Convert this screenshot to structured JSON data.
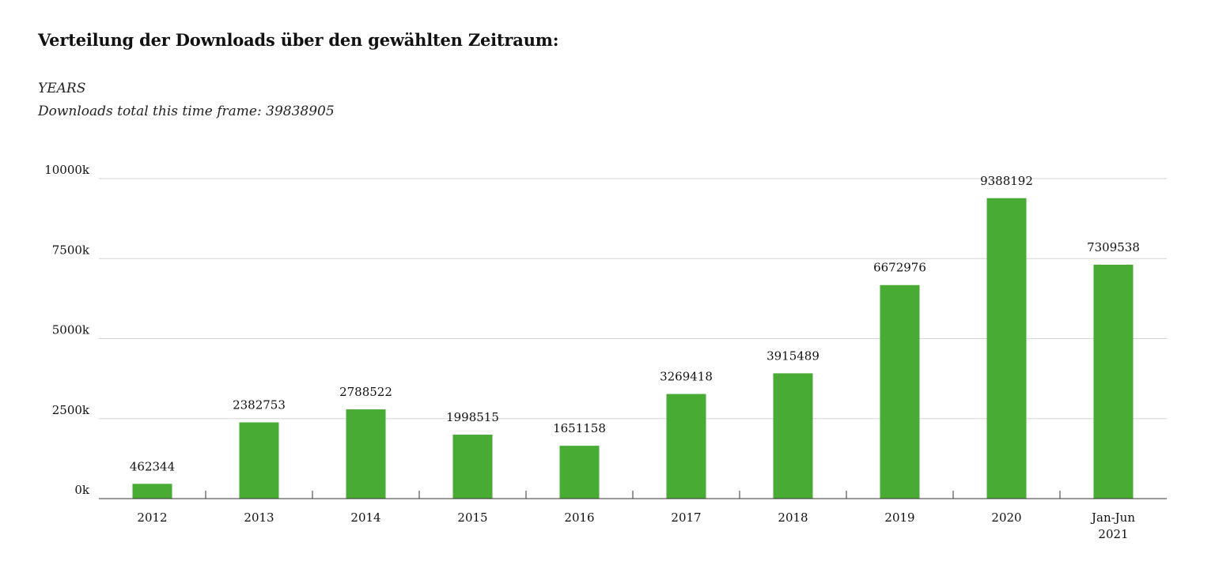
{
  "heading": "Verteilung der Downloads über den gewählten Zeitraum:",
  "frame_label": "YEARS",
  "total_prefix": "Downloads total this time frame: ",
  "total_value": "39838905",
  "colors": {
    "bar": "#47ab34",
    "grid": "#d6d6d6",
    "axis": "#333333",
    "text": "#111111"
  },
  "chart_data": {
    "type": "bar",
    "title": "Verteilung der Downloads über den gewählten Zeitraum:",
    "xlabel": "",
    "ylabel": "",
    "categories": [
      "2012",
      "2013",
      "2014",
      "2015",
      "2016",
      "2017",
      "2018",
      "2019",
      "2020",
      "Jan-Jun 2021"
    ],
    "category_lines": [
      [
        "2012"
      ],
      [
        "2013"
      ],
      [
        "2014"
      ],
      [
        "2015"
      ],
      [
        "2016"
      ],
      [
        "2017"
      ],
      [
        "2018"
      ],
      [
        "2019"
      ],
      [
        "2020"
      ],
      [
        "Jan-Jun",
        "2021"
      ]
    ],
    "values": [
      462344,
      2382753,
      2788522,
      1998515,
      1651158,
      3269418,
      3915489,
      6672976,
      9388192,
      7309538
    ],
    "ylim": [
      0,
      10000000
    ],
    "yticks": [
      0,
      2500000,
      5000000,
      7500000,
      10000000
    ],
    "ytick_labels": [
      "0k",
      "2500k",
      "5000k",
      "7500k",
      "10000k"
    ],
    "grid": true,
    "legend": "none"
  }
}
